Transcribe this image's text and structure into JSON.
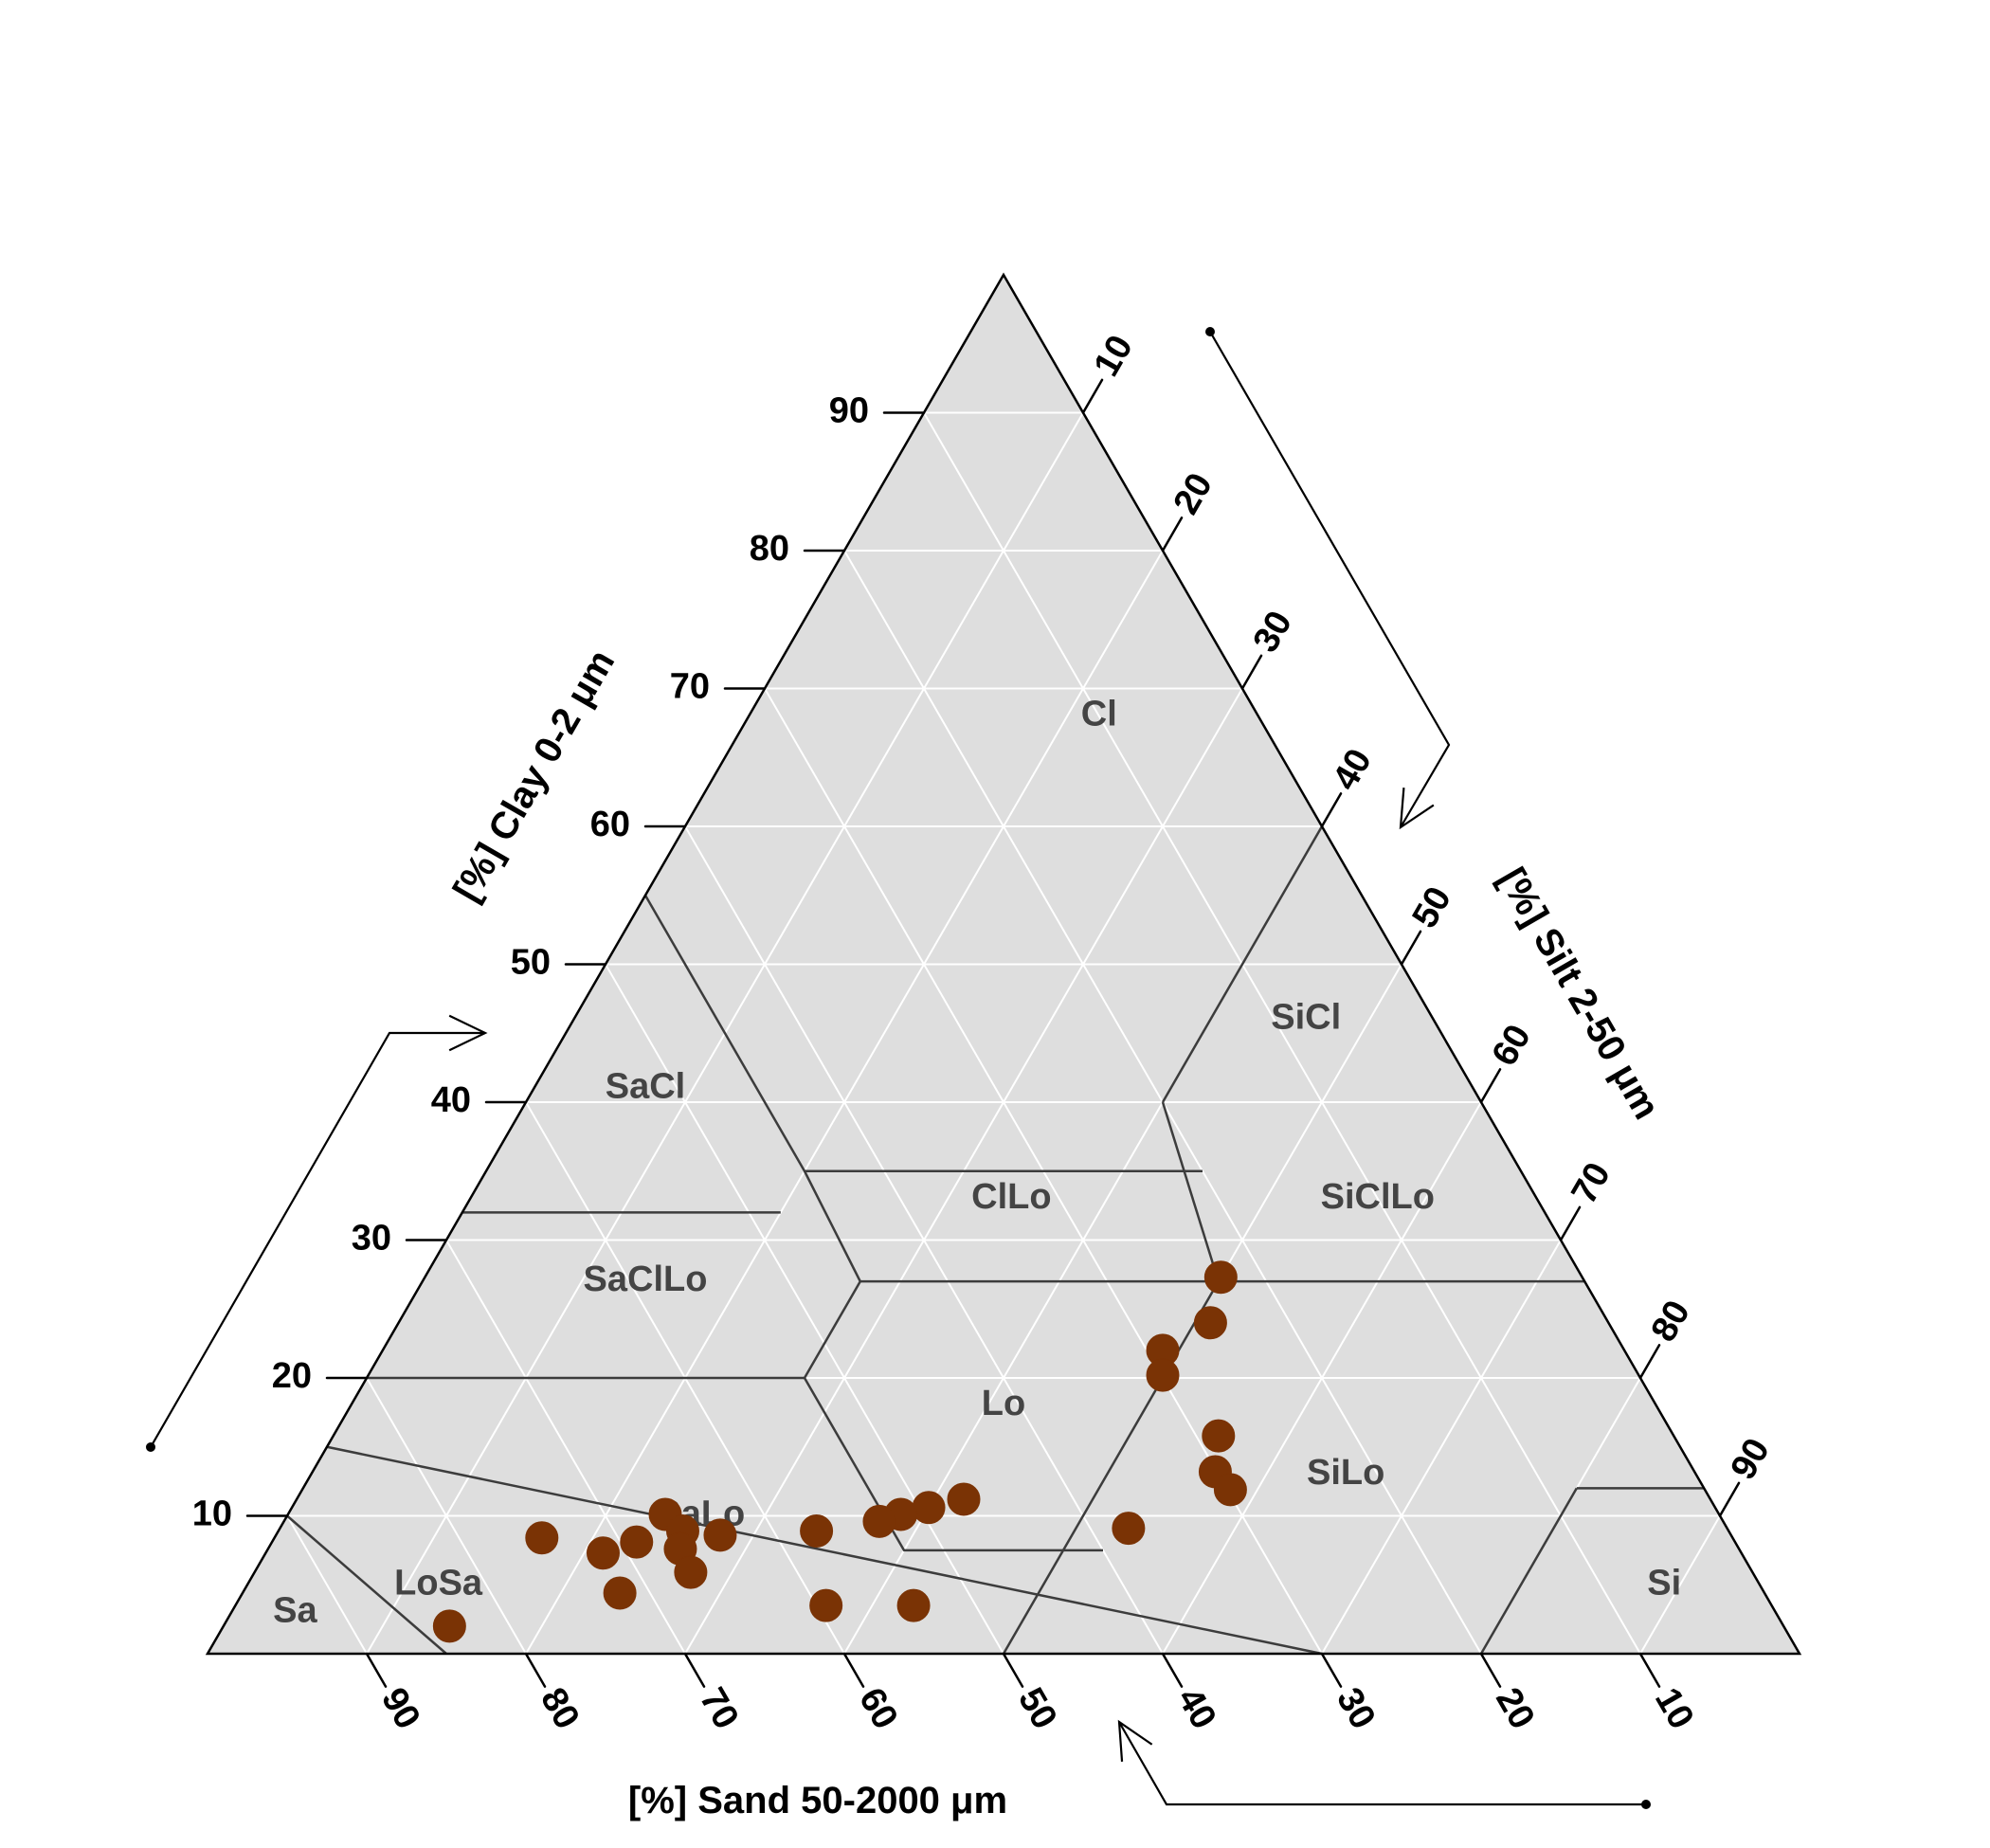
{
  "chart_data": {
    "type": "scatter",
    "subtype": "soil texture triangle",
    "axes": {
      "clay": {
        "label": "[%] Clay 0-2 μm",
        "ticks": [
          10,
          20,
          30,
          40,
          50,
          60,
          70,
          80,
          90
        ]
      },
      "silt": {
        "label": "[%] Silt 2-50 μm",
        "ticks": [
          10,
          20,
          30,
          40,
          50,
          60,
          70,
          80,
          90
        ]
      },
      "sand": {
        "label": "[%] Sand 50-2000 μm",
        "ticks": [
          90,
          80,
          70,
          60,
          50,
          40,
          30,
          20,
          10
        ]
      }
    },
    "grid": true,
    "grid_step": 10,
    "classes": [
      {
        "label": "Cl",
        "centroid": {
          "clay": 68,
          "silt": 22,
          "sand": 10
        }
      },
      {
        "label": "SiCl",
        "centroid": {
          "clay": 46,
          "silt": 46,
          "sand": 8
        }
      },
      {
        "label": "SaCl",
        "centroid": {
          "clay": 41,
          "silt": 7,
          "sand": 52
        }
      },
      {
        "label": "ClLo",
        "centroid": {
          "clay": 33,
          "silt": 34,
          "sand": 33
        }
      },
      {
        "label": "SiClLo",
        "centroid": {
          "clay": 33,
          "silt": 57,
          "sand": 10
        }
      },
      {
        "label": "SaClLo",
        "centroid": {
          "clay": 27,
          "silt": 14,
          "sand": 59
        }
      },
      {
        "label": "Lo",
        "centroid": {
          "clay": 18,
          "silt": 41,
          "sand": 41
        }
      },
      {
        "label": "SiLo",
        "centroid": {
          "clay": 13,
          "silt": 65,
          "sand": 22
        }
      },
      {
        "label": "SaLo",
        "centroid": {
          "clay": 10,
          "silt": 26,
          "sand": 64
        }
      },
      {
        "label": "LoSa",
        "centroid": {
          "clay": 5,
          "silt": 12,
          "sand": 83
        }
      },
      {
        "label": "Sa",
        "centroid": {
          "clay": 3,
          "silt": 4,
          "sand": 93
        }
      },
      {
        "label": "Si",
        "centroid": {
          "clay": 5,
          "silt": 89,
          "sand": 6
        }
      }
    ],
    "points_color": "#7a3305",
    "points": [
      {
        "clay": 27.3,
        "silt": 50.0,
        "sand": 22.7
      },
      {
        "clay": 24.0,
        "silt": 51.0,
        "sand": 25.0
      },
      {
        "clay": 22.0,
        "silt": 49.0,
        "sand": 29.0
      },
      {
        "clay": 20.2,
        "silt": 49.9,
        "sand": 29.9
      },
      {
        "clay": 15.8,
        "silt": 55.6,
        "sand": 28.6
      },
      {
        "clay": 13.2,
        "silt": 56.7,
        "sand": 30.1
      },
      {
        "clay": 11.9,
        "silt": 58.3,
        "sand": 29.8
      },
      {
        "clay": 9.1,
        "silt": 53.3,
        "sand": 37.6
      },
      {
        "clay": 11.2,
        "silt": 41.9,
        "sand": 46.9
      },
      {
        "clay": 10.6,
        "silt": 40.0,
        "sand": 49.4
      },
      {
        "clay": 10.1,
        "silt": 38.5,
        "sand": 51.4
      },
      {
        "clay": 9.6,
        "silt": 37.4,
        "sand": 53.0
      },
      {
        "clay": 8.9,
        "silt": 33.8,
        "sand": 57.3
      },
      {
        "clay": 10.1,
        "silt": 23.7,
        "sand": 66.2
      },
      {
        "clay": 8.9,
        "silt": 25.4,
        "sand": 65.7
      },
      {
        "clay": 8.6,
        "silt": 27.9,
        "sand": 63.5
      },
      {
        "clay": 8.1,
        "silt": 22.9,
        "sand": 69.0
      },
      {
        "clay": 7.3,
        "silt": 21.2,
        "sand": 71.5
      },
      {
        "clay": 8.4,
        "silt": 16.8,
        "sand": 74.8
      },
      {
        "clay": 7.6,
        "silt": 25.9,
        "sand": 66.5
      },
      {
        "clay": 5.9,
        "silt": 27.4,
        "sand": 66.7
      },
      {
        "clay": 4.4,
        "silt": 23.7,
        "sand": 71.9
      },
      {
        "clay": 3.5,
        "silt": 37.1,
        "sand": 59.4
      },
      {
        "clay": 3.5,
        "silt": 42.6,
        "sand": 53.9
      },
      {
        "clay": 2.0,
        "silt": 14.2,
        "sand": 83.8
      }
    ]
  }
}
